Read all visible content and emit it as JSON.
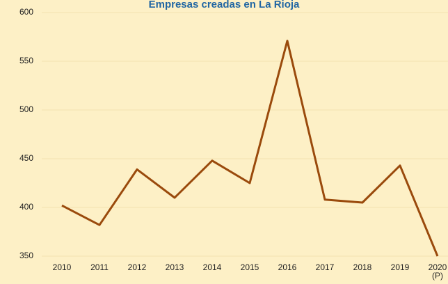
{
  "chart_data": {
    "type": "line",
    "title": "Empresas creadas en La Rioja",
    "categories": [
      "2010",
      "2011",
      "2012",
      "2013",
      "2014",
      "2015",
      "2016",
      "2017",
      "2018",
      "2019",
      "2020\n(P)"
    ],
    "values": [
      402,
      382,
      439,
      410,
      448,
      425,
      571,
      408,
      405,
      443,
      350
    ],
    "color": "#9a4a0c",
    "ylim": [
      350,
      600
    ],
    "yticks": [
      350,
      400,
      450,
      500,
      550,
      600
    ],
    "grid": true
  }
}
